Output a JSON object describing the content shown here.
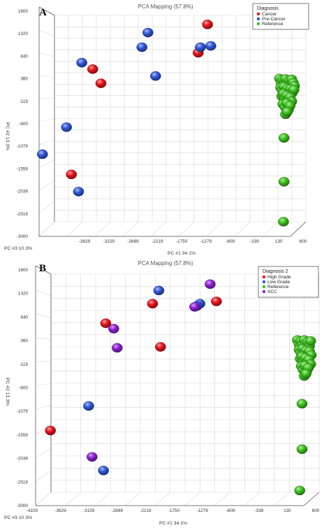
{
  "chart_data": [
    {
      "type": "scatter",
      "panel_label": "A",
      "title": "PCA Mapping (57.8%)",
      "xlabel": "PC #1 34.1%",
      "ylabel": "PC #2 13.3%",
      "zlabel": "PC #3 10.3%",
      "x_ticks": [
        "-3629",
        "-3159",
        "-2689",
        "-2219",
        "-1750",
        "-1279",
        "-809",
        "-339",
        "130",
        "600"
      ],
      "y_ticks": [
        "1800",
        "1320",
        "840",
        "360",
        "-119",
        "-600",
        "-1079",
        "-1559",
        "-2039",
        "-2519",
        "-3000"
      ],
      "x_range": [
        -4000,
        600
      ],
      "y_range": [
        -3000,
        1800
      ],
      "legend": {
        "title": "Diagnosis",
        "position": "top-right",
        "entries": [
          {
            "label": "Cancer",
            "color": "#e8141c"
          },
          {
            "label": "Pre-Cancer",
            "color": "#2f57d9"
          },
          {
            "label": "Reference",
            "color": "#3cc21c"
          }
        ]
      },
      "series": [
        {
          "name": "Cancer",
          "color": "#e8141c",
          "points": [
            [
              -1200,
              1590
            ],
            [
              -3300,
              550
            ],
            [
              -3150,
              220
            ],
            [
              -3690,
              -1900
            ],
            [
              -1370,
              930
            ]
          ]
        },
        {
          "name": "Pre-Cancer",
          "color": "#2f57d9",
          "points": [
            [
              -2290,
              1400
            ],
            [
              -2400,
              1060
            ],
            [
              -3500,
              700
            ],
            [
              -2150,
              390
            ],
            [
              -1330,
              1060
            ],
            [
              -1140,
              1090
            ],
            [
              -3780,
              -800
            ],
            [
              -3560,
              -2300
            ],
            [
              -4220,
              -1430
            ]
          ]
        },
        {
          "name": "Reference",
          "color": "#3cc21c",
          "points": [
            [
              120,
              330
            ],
            [
              150,
              230
            ],
            [
              180,
              300
            ],
            [
              210,
              200
            ],
            [
              230,
              320
            ],
            [
              260,
              240
            ],
            [
              290,
              280
            ],
            [
              320,
              190
            ],
            [
              340,
              310
            ],
            [
              370,
              230
            ],
            [
              390,
              160
            ],
            [
              140,
              120
            ],
            [
              170,
              60
            ],
            [
              200,
              140
            ],
            [
              230,
              40
            ],
            [
              260,
              100
            ],
            [
              290,
              20
            ],
            [
              320,
              90
            ],
            [
              350,
              0
            ],
            [
              380,
              70
            ],
            [
              160,
              -80
            ],
            [
              190,
              -20
            ],
            [
              220,
              -130
            ],
            [
              250,
              -60
            ],
            [
              280,
              -160
            ],
            [
              310,
              -100
            ],
            [
              340,
              -200
            ],
            [
              180,
              -260
            ],
            [
              220,
              -330
            ],
            [
              250,
              -240
            ],
            [
              280,
              -390
            ],
            [
              310,
              -300
            ],
            [
              230,
              -500
            ],
            [
              260,
              -440
            ],
            [
              200,
              -1050
            ],
            [
              200,
              -2070
            ],
            [
              190,
              -3000
            ]
          ]
        }
      ]
    },
    {
      "type": "scatter",
      "panel_label": "B",
      "title": "PCA Mapping (57.8%)",
      "xlabel": "PC #1 34.1%",
      "ylabel": "PC #2 13.3%",
      "zlabel": "PC #3 10.3%",
      "x_ticks": [
        "-4100",
        "-3629",
        "-3159",
        "-2689",
        "-2219",
        "-1750",
        "-1279",
        "-809",
        "-339",
        "130",
        "600"
      ],
      "y_ticks": [
        "1800",
        "1320",
        "840",
        "360",
        "-119",
        "-600",
        "-1079",
        "-1559",
        "-2039",
        "-2519",
        "-3000"
      ],
      "x_range": [
        -4100,
        600
      ],
      "y_range": [
        -3000,
        1800
      ],
      "legend": {
        "title": "Diagnosis 2",
        "position": "top-right",
        "entries": [
          {
            "label": "High Grade",
            "color": "#e8141c"
          },
          {
            "label": "Low Grade",
            "color": "#2f57d9"
          },
          {
            "label": "Reference",
            "color": "#3cc21c"
          },
          {
            "label": "SCC",
            "color": "#8e1ed6"
          }
        ]
      },
      "series": [
        {
          "name": "High Grade",
          "color": "#e8141c",
          "points": [
            [
              -2320,
              1150
            ],
            [
              -1200,
              1200
            ],
            [
              -3140,
              720
            ],
            [
              -2180,
              200
            ],
            [
              -4110,
              -1640
            ]
          ]
        },
        {
          "name": "Low Grade",
          "color": "#2f57d9",
          "points": [
            [
              -2210,
              1440
            ],
            [
              -1490,
              1150
            ],
            [
              -1540,
              1100
            ],
            [
              -3440,
              -1100
            ],
            [
              -3180,
              -2520
            ]
          ]
        },
        {
          "name": "Reference",
          "color": "#3cc21c",
          "points": [
            [
              220,
              350
            ],
            [
              250,
              260
            ],
            [
              280,
              330
            ],
            [
              310,
              230
            ],
            [
              340,
              350
            ],
            [
              370,
              270
            ],
            [
              400,
              310
            ],
            [
              430,
              220
            ],
            [
              450,
              330
            ],
            [
              250,
              140
            ],
            [
              280,
              80
            ],
            [
              310,
              160
            ],
            [
              340,
              60
            ],
            [
              370,
              120
            ],
            [
              400,
              40
            ],
            [
              430,
              100
            ],
            [
              460,
              20
            ],
            [
              270,
              -60
            ],
            [
              300,
              -10
            ],
            [
              330,
              -110
            ],
            [
              360,
              -40
            ],
            [
              390,
              -140
            ],
            [
              420,
              -80
            ],
            [
              450,
              -180
            ],
            [
              290,
              -220
            ],
            [
              320,
              -300
            ],
            [
              350,
              -210
            ],
            [
              380,
              -340
            ],
            [
              410,
              -260
            ],
            [
              340,
              -440
            ],
            [
              370,
              -390
            ],
            [
              300,
              -1050
            ],
            [
              300,
              -2050
            ],
            [
              260,
              -2960
            ]
          ]
        },
        {
          "name": "SCC",
          "color": "#8e1ed6",
          "points": [
            [
              -1310,
              1580
            ],
            [
              -3000,
              600
            ],
            [
              -2940,
              180
            ],
            [
              -3380,
              -2220
            ],
            [
              -1580,
              1080
            ]
          ]
        }
      ]
    }
  ]
}
